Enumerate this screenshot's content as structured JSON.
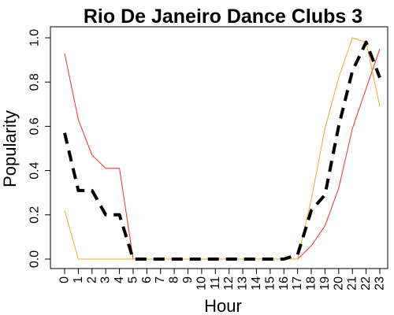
{
  "chart_data": {
    "type": "line",
    "title": "Rio De Janeiro Dance Clubs 3",
    "xlabel": "Hour",
    "ylabel": "Popularity",
    "x": [
      0,
      1,
      2,
      3,
      4,
      5,
      6,
      7,
      8,
      9,
      10,
      11,
      12,
      13,
      14,
      15,
      16,
      17,
      18,
      19,
      20,
      21,
      22,
      23
    ],
    "x_tick_labels": [
      "0",
      "1",
      "2",
      "3",
      "4",
      "5",
      "6",
      "7",
      "8",
      "9",
      "10",
      "11",
      "12",
      "13",
      "14",
      "15",
      "16",
      "17",
      "18",
      "19",
      "20",
      "21",
      "22",
      "23"
    ],
    "y_ticks": [
      0.0,
      0.2,
      0.4,
      0.6,
      0.8,
      1.0
    ],
    "y_tick_labels": [
      "0.0",
      "0.2",
      "0.4",
      "0.6",
      "0.8",
      "1.0"
    ],
    "xlim": [
      0,
      23
    ],
    "ylim": [
      0,
      1.0
    ],
    "grid": false,
    "series": [
      {
        "color": "#e8301e",
        "style": "solid",
        "values": [
          0.93,
          0.63,
          0.47,
          0.41,
          0.41,
          0,
          0,
          0,
          0,
          0,
          0,
          0,
          0,
          0,
          0,
          0,
          0,
          0,
          0.06,
          0.15,
          0.32,
          0.59,
          0.77,
          0.95
        ]
      },
      {
        "color": "#f5a623",
        "style": "solid",
        "values": [
          0.22,
          0,
          0,
          0,
          0,
          0,
          0,
          0,
          0,
          0,
          0,
          0,
          0,
          0,
          0,
          0,
          0,
          0,
          0.27,
          0.59,
          0.82,
          1.0,
          0.98,
          0.69
        ]
      },
      {
        "color": "#000000",
        "style": "dashed",
        "values": [
          0.57,
          0.31,
          0.31,
          0.2,
          0.2,
          0,
          0,
          0,
          0,
          0,
          0,
          0,
          0,
          0,
          0,
          0,
          0,
          0.02,
          0.22,
          0.29,
          0.6,
          0.85,
          0.98,
          0.82
        ]
      }
    ]
  }
}
